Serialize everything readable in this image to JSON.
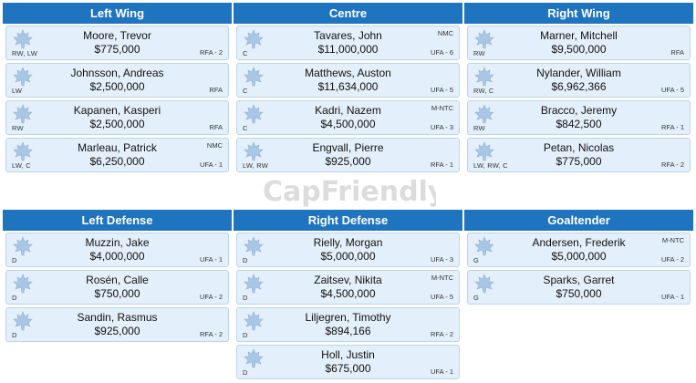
{
  "sections": [
    {
      "header": "Left Wing",
      "players": [
        {
          "name": "Moore, Trevor",
          "cap": "$775,000",
          "pos": "RW, LW",
          "status": "RFA - 2",
          "clause": ""
        },
        {
          "name": "Johnsson, Andreas",
          "cap": "$2,500,000",
          "pos": "LW",
          "status": "RFA",
          "clause": ""
        },
        {
          "name": "Kapanen, Kasperi",
          "cap": "$2,500,000",
          "pos": "RW",
          "status": "RFA",
          "clause": ""
        },
        {
          "name": "Marleau, Patrick",
          "cap": "$6,250,000",
          "pos": "LW, C",
          "status": "UFA - 1",
          "clause": "NMC"
        }
      ]
    },
    {
      "header": "Centre",
      "players": [
        {
          "name": "Tavares, John",
          "cap": "$11,000,000",
          "pos": "C",
          "status": "UFA - 6",
          "clause": "NMC"
        },
        {
          "name": "Matthews, Auston",
          "cap": "$11,634,000",
          "pos": "C",
          "status": "UFA - 5",
          "clause": ""
        },
        {
          "name": "Kadri, Nazem",
          "cap": "$4,500,000",
          "pos": "C",
          "status": "UFA - 3",
          "clause": "M-NTC"
        },
        {
          "name": "Engvall, Pierre",
          "cap": "$925,000",
          "pos": "LW, RW",
          "status": "RFA - 1",
          "clause": ""
        }
      ]
    },
    {
      "header": "Right Wing",
      "players": [
        {
          "name": "Marner, Mitchell",
          "cap": "$9,500,000",
          "pos": "RW",
          "status": "RFA",
          "clause": ""
        },
        {
          "name": "Nylander, William",
          "cap": "$6,962,366",
          "pos": "RW, C",
          "status": "UFA - 5",
          "clause": ""
        },
        {
          "name": "Bracco, Jeremy",
          "cap": "$842,500",
          "pos": "RW",
          "status": "RFA - 1",
          "clause": ""
        },
        {
          "name": "Petan, Nicolas",
          "cap": "$775,000",
          "pos": "LW, RW, C",
          "status": "RFA - 2",
          "clause": ""
        }
      ]
    },
    {
      "header": "Left Defense",
      "players": [
        {
          "name": "Muzzin, Jake",
          "cap": "$4,000,000",
          "pos": "D",
          "status": "UFA - 1",
          "clause": ""
        },
        {
          "name": "Rosén, Calle",
          "cap": "$750,000",
          "pos": "D",
          "status": "UFA - 2",
          "clause": ""
        },
        {
          "name": "Sandin, Rasmus",
          "cap": "$925,000",
          "pos": "D",
          "status": "RFA - 2",
          "clause": ""
        }
      ]
    },
    {
      "header": "Right Defense",
      "players": [
        {
          "name": "Rielly, Morgan",
          "cap": "$5,000,000",
          "pos": "D",
          "status": "UFA - 3",
          "clause": ""
        },
        {
          "name": "Zaitsev, Nikita",
          "cap": "$4,500,000",
          "pos": "D",
          "status": "UFA - 5",
          "clause": "M-NTC"
        },
        {
          "name": "Liljegren, Timothy",
          "cap": "$894,166",
          "pos": "D",
          "status": "RFA - 2",
          "clause": ""
        },
        {
          "name": "Holl, Justin",
          "cap": "$675,000",
          "pos": "D",
          "status": "UFA - 1",
          "clause": ""
        }
      ]
    },
    {
      "header": "Goaltender",
      "players": [
        {
          "name": "Andersen, Frederik",
          "cap": "$5,000,000",
          "pos": "G",
          "status": "UFA - 2",
          "clause": "M-NTC"
        },
        {
          "name": "Sparks, Garret",
          "cap": "$750,000",
          "pos": "G",
          "status": "UFA - 1",
          "clause": ""
        }
      ]
    }
  ],
  "watermark": "CapFriendly",
  "colors": {
    "header_bg": "#1f74c0",
    "card_bg": "#e3effa",
    "card_border": "#bcd4ea",
    "logo": "#a9c6e4"
  },
  "icons": {
    "team_logo": "maple-leaf-icon"
  }
}
